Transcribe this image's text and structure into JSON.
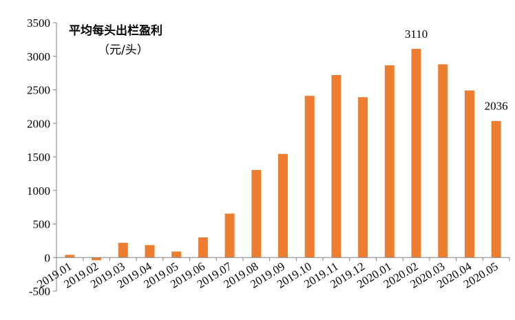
{
  "chart_data": {
    "type": "bar",
    "title": "平均每头出栏盈利",
    "unit": "（元/头）",
    "xlabel": "",
    "ylabel": "",
    "ylim": [
      -500,
      3500
    ],
    "ytick_step": 500,
    "grid": false,
    "bar_color": "#ED7D31",
    "categories": [
      "2019.01",
      "2019.02",
      "2019.03",
      "2019.04",
      "2019.05",
      "2019.06",
      "2019.07",
      "2019.08",
      "2019.09",
      "2019.10",
      "2019.11",
      "2019.12",
      "2020.01",
      "2020.02",
      "2020.03",
      "2020.04",
      "2020.05"
    ],
    "values": [
      40,
      -40,
      220,
      185,
      90,
      300,
      655,
      1305,
      1545,
      2410,
      2720,
      2390,
      2865,
      3110,
      2880,
      2490,
      2036
    ],
    "data_labels": [
      {
        "index": 13,
        "text": "3110"
      },
      {
        "index": 16,
        "text": "2036"
      }
    ]
  }
}
